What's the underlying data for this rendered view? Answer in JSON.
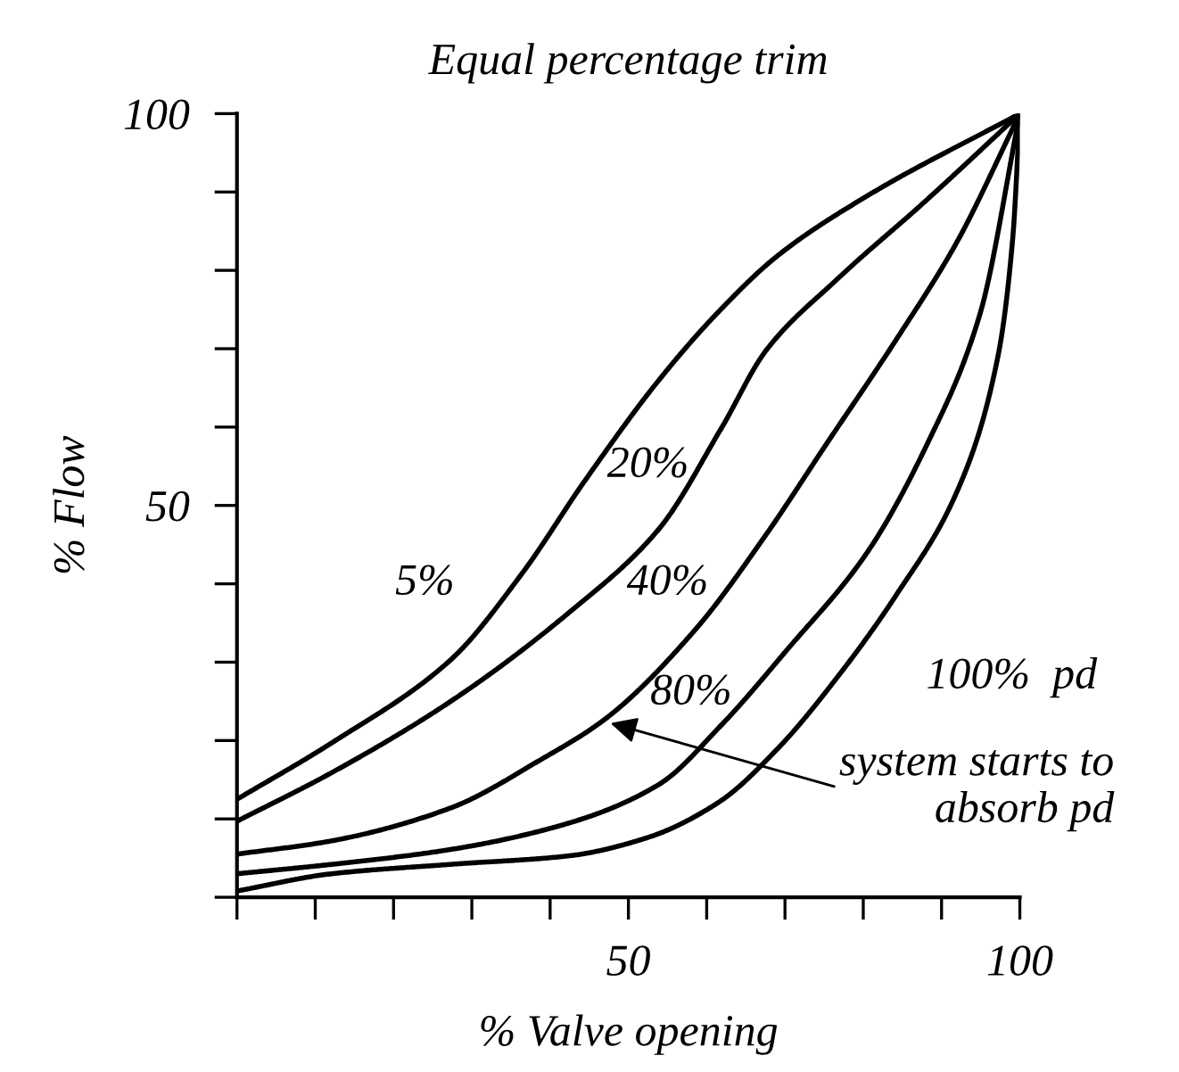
{
  "chart_data": {
    "type": "line",
    "title": "Equal percentage trim",
    "xlabel": "% Valve opening",
    "ylabel": "% Flow",
    "xlim": [
      0,
      100
    ],
    "ylim": [
      0,
      100
    ],
    "xticks": [
      {
        "value": 0,
        "label": null
      },
      {
        "value": 10,
        "label": null
      },
      {
        "value": 20,
        "label": null
      },
      {
        "value": 30,
        "label": null
      },
      {
        "value": 40,
        "label": null
      },
      50,
      {
        "value": 60,
        "label": null
      },
      {
        "value": 70,
        "label": null
      },
      {
        "value": 80,
        "label": null
      },
      {
        "value": 90,
        "label": null
      },
      100
    ],
    "yticks": [
      {
        "value": 0,
        "label": null
      },
      {
        "value": 10,
        "label": null
      },
      {
        "value": 20,
        "label": null
      },
      {
        "value": 30,
        "label": null
      },
      {
        "value": 40,
        "label": null
      },
      50,
      {
        "value": 60,
        "label": null
      },
      {
        "value": 70,
        "label": null
      },
      {
        "value": 80,
        "label": null
      },
      {
        "value": 90,
        "label": null
      },
      100
    ],
    "series": [
      {
        "name": "5%",
        "color": "#000000",
        "x": [
          0,
          12.1,
          27.3,
          36.4,
          44.4,
          53.9,
          61.5,
          69.1,
          80.5,
          100
        ],
        "values": [
          12.5,
          19.7,
          30.3,
          41.3,
          53.1,
          66,
          74.7,
          81.9,
          89.5,
          100
        ]
      },
      {
        "name": "20%",
        "color": "#000000",
        "x": [
          0,
          12.1,
          27.3,
          42.5,
          53.9,
          61.9,
          67.6,
          76.7,
          87.9,
          100
        ],
        "values": [
          9.7,
          15.9,
          25,
          36.4,
          47,
          59.9,
          69.8,
          78.9,
          88.8,
          100
        ]
      },
      {
        "name": "40%",
        "color": "#000000",
        "x": [
          0,
          12.1,
          27.3,
          38.7,
          47.1,
          58.5,
          67.6,
          75.2,
          84.3,
          91.9,
          100
        ],
        "values": [
          5.5,
          7.2,
          11.4,
          17.5,
          22.8,
          34.1,
          46.3,
          57.7,
          71.3,
          83.5,
          100
        ]
      },
      {
        "name": "80%",
        "color": "#000000",
        "x": [
          0,
          12.1,
          27.3,
          42.5,
          53.9,
          61.9,
          70.2,
          80.5,
          88.1,
          94.9,
          100
        ],
        "values": [
          3,
          4.2,
          6.1,
          9.5,
          14.4,
          22,
          31.5,
          44,
          57.7,
          74.4,
          100
        ]
      },
      {
        "name": "100%  pd",
        "color": "#000000",
        "x": [
          0,
          12.1,
          27.3,
          42.5,
          52.4,
          61.5,
          69.1,
          76.7,
          84.3,
          91.9,
          97.2,
          99.1,
          100
        ],
        "values": [
          0.8,
          3,
          4.2,
          5.3,
          7.6,
          12.1,
          19,
          28.1,
          38.7,
          51.6,
          69,
          84.2,
          100
        ]
      }
    ],
    "annotations": [
      {
        "text": "system starts to\nabsorb pd",
        "x": 47.1,
        "y": 22.4
      }
    ]
  }
}
